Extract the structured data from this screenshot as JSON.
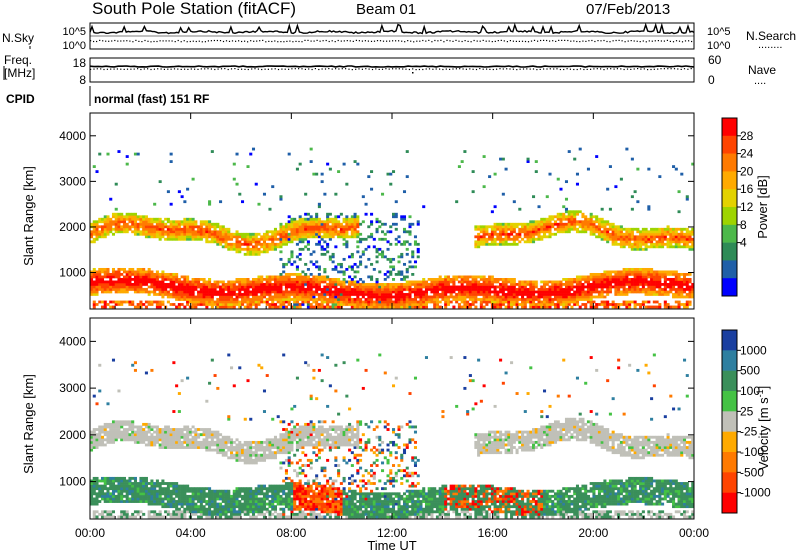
{
  "header": {
    "station": "South Pole Station (fitACF)",
    "beam": "Beam 01",
    "date": "07/Feb/2013"
  },
  "sky_panel": {
    "left_label": "N.Sky",
    "right_label": "N.Search",
    "right_legend": "........",
    "left_ticks": [
      "10^5",
      "10^0"
    ],
    "right_ticks": [
      "10^5",
      "10^0"
    ]
  },
  "freq_panel": {
    "left_label_1": "Freq.",
    "left_label_2": "[MHz]",
    "right_label": "Nave",
    "right_legend": "....",
    "left_ticks": [
      "18",
      "8"
    ],
    "right_ticks": [
      "60",
      "0"
    ]
  },
  "cpid": {
    "label": "CPID",
    "mode": "normal (fast) 151 RF"
  },
  "power_colorbar": {
    "label": "Power [dB]",
    "ticks": [
      "28",
      "24",
      "20",
      "16",
      "12",
      "8",
      "4"
    ],
    "colors": [
      "#ff0000",
      "#ff4400",
      "#ff7a00",
      "#ffaa00",
      "#e3d200",
      "#9ed400",
      "#4cb84a",
      "#2e8b57",
      "#1f5fa8",
      "#0000ff"
    ]
  },
  "velocity_colorbar": {
    "label_main": "Velocity [m s",
    "label_sup": "-1",
    "label_end": "]",
    "ticks": [
      "1000",
      "500",
      "100",
      "25",
      "-25",
      "-100",
      "-500",
      "-1000"
    ],
    "colors": [
      "#1a3fa0",
      "#2e7fa0",
      "#3a8f5a",
      "#44c244",
      "#c0c0b8",
      "#ffaa00",
      "#ff7a00",
      "#ff4400",
      "#ff0000"
    ]
  },
  "chart_data": [
    {
      "type": "heatmap",
      "title": "Power",
      "ylabel": "Slant Range [km]",
      "ylim": [
        200,
        4500
      ],
      "yticks": [
        "1000",
        "2000",
        "3000",
        "4000"
      ],
      "xlim": [
        "00:00",
        "24:00"
      ],
      "colorbar": "Power [dB]",
      "bands": [
        {
          "name": "upper band",
          "x": [
            "00:00",
            "24:00"
          ],
          "range_km": [
            1500,
            2200
          ],
          "dominant": "green-orange"
        },
        {
          "name": "lower band",
          "x": [
            "00:00",
            "24:00"
          ],
          "range_km": [
            300,
            1200
          ],
          "dominant": "orange-red"
        }
      ]
    },
    {
      "type": "heatmap",
      "title": "Velocity",
      "ylabel": "Slant Range [km]",
      "ylim": [
        200,
        4500
      ],
      "yticks": [
        "1000",
        "2000",
        "3000",
        "4000"
      ],
      "xlim": [
        "00:00",
        "24:00"
      ],
      "xticks": [
        "00:00",
        "04:00",
        "08:00",
        "12:00",
        "16:00",
        "20:00",
        "00:00"
      ],
      "xlabel": "Time UT",
      "colorbar": "Velocity [m s-1]",
      "bands": [
        {
          "name": "upper band",
          "x": [
            "00:00",
            "24:00"
          ],
          "range_km": [
            1500,
            2200
          ],
          "dominant": "grey"
        },
        {
          "name": "lower band",
          "x": [
            "00:00",
            "24:00"
          ],
          "range_km": [
            300,
            1200
          ],
          "dominant": "green-orange"
        }
      ]
    }
  ]
}
